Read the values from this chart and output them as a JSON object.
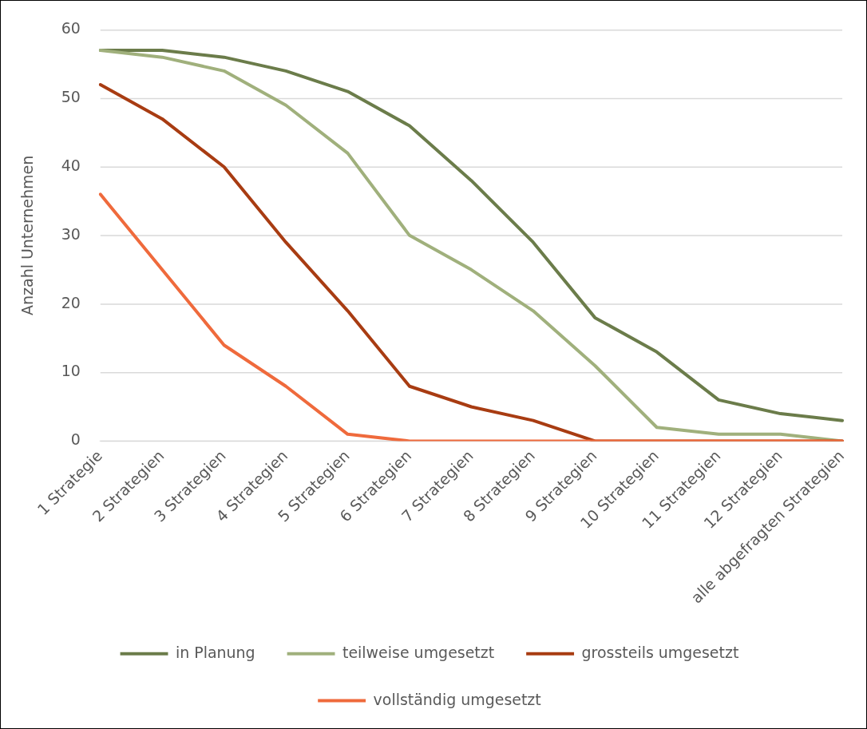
{
  "chart_data": {
    "type": "line",
    "ylabel": "Anzahl Unternehmen",
    "categories": [
      "1 Strategie",
      "2 Strategien",
      "3 Strategien",
      "4 Strategien",
      "5 Strategien",
      "6 Strategien",
      "7 Strategien",
      "8 Strategien",
      "9 Strategien",
      "10 Strategien",
      "11 Strategien",
      "12 Strategien",
      "alle abgefragten Strategien"
    ],
    "series": [
      {
        "name": "in Planung",
        "color": "#6b7c4a",
        "values": [
          57,
          57,
          56,
          54,
          51,
          46,
          38,
          29,
          18,
          13,
          6,
          4,
          3
        ]
      },
      {
        "name": "teilweise umgesetzt",
        "color": "#a0b07c",
        "values": [
          57,
          56,
          54,
          49,
          42,
          30,
          25,
          19,
          11,
          2,
          1,
          1,
          0
        ]
      },
      {
        "name": "grossteils umgesetzt",
        "color": "#a83c12",
        "values": [
          52,
          47,
          40,
          29,
          19,
          8,
          5,
          3,
          0,
          0,
          0,
          0,
          0
        ]
      },
      {
        "name": "vollständig umgesetzt",
        "color": "#ef6a3c",
        "values": [
          36,
          25,
          14,
          8,
          1,
          0,
          0,
          0,
          0,
          0,
          0,
          0,
          0
        ]
      }
    ],
    "ylim": [
      0,
      60
    ],
    "yticks": [
      0,
      10,
      20,
      30,
      40,
      50,
      60
    ],
    "grid": "y",
    "legend": "bottom",
    "marker": "none",
    "line_style": "solid"
  }
}
